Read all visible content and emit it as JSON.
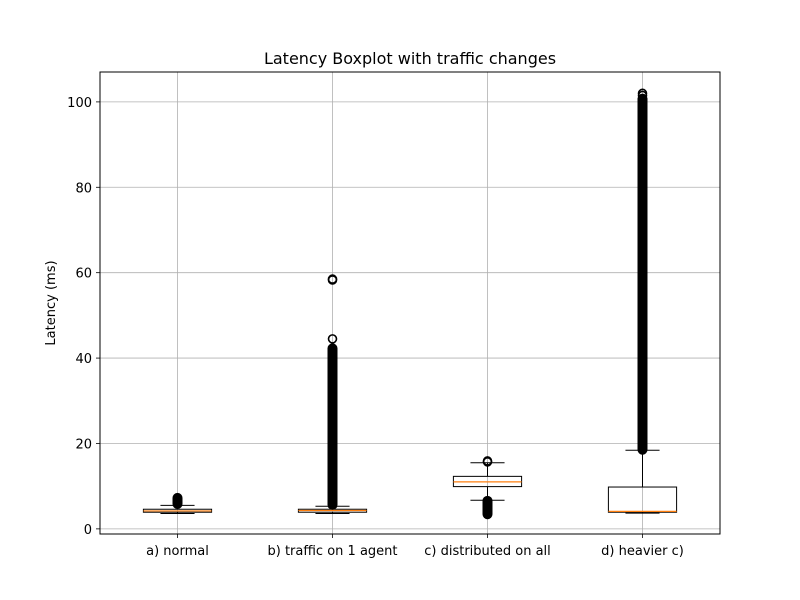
{
  "chart_data": {
    "type": "boxplot",
    "title": "Latency Boxplot with traffic changes",
    "xlabel": "",
    "ylabel": "Latency (ms)",
    "ylim": [
      -1.2,
      107
    ],
    "yticks": [
      0,
      20,
      40,
      60,
      80,
      100
    ],
    "grid": true,
    "categories": [
      "a) normal",
      "b) traffic on 1 agent",
      "c) distributed on all",
      "d) heavier c)"
    ],
    "boxes": [
      {
        "whisker_low": 3.6,
        "q1": 3.9,
        "median": 4.2,
        "q3": 4.6,
        "whisker_high": 5.5,
        "outlier_bands": [
          [
            5.6,
            7.5
          ]
        ],
        "outliers": []
      },
      {
        "whisker_low": 3.6,
        "q1": 3.9,
        "median": 4.3,
        "q3": 4.6,
        "whisker_high": 5.3,
        "outlier_bands": [
          [
            5.4,
            42.5
          ]
        ],
        "outliers": [
          44.5,
          58.3,
          58.5
        ]
      },
      {
        "whisker_low": 6.7,
        "q1": 9.9,
        "median": 11.0,
        "q3": 12.3,
        "whisker_high": 15.5,
        "outlier_bands": [
          [
            3.2,
            6.8
          ]
        ],
        "outliers": [
          15.7,
          15.9
        ]
      },
      {
        "whisker_low": 3.7,
        "q1": 3.9,
        "median": 4.1,
        "q3": 9.8,
        "whisker_high": 18.4,
        "outlier_bands": [
          [
            18.3,
            101.0
          ]
        ],
        "outliers": [
          101.5,
          102.0
        ]
      }
    ],
    "colors": {
      "box": "#000000",
      "median": "#ff7f0e",
      "grid": "#b0b0b0"
    }
  }
}
